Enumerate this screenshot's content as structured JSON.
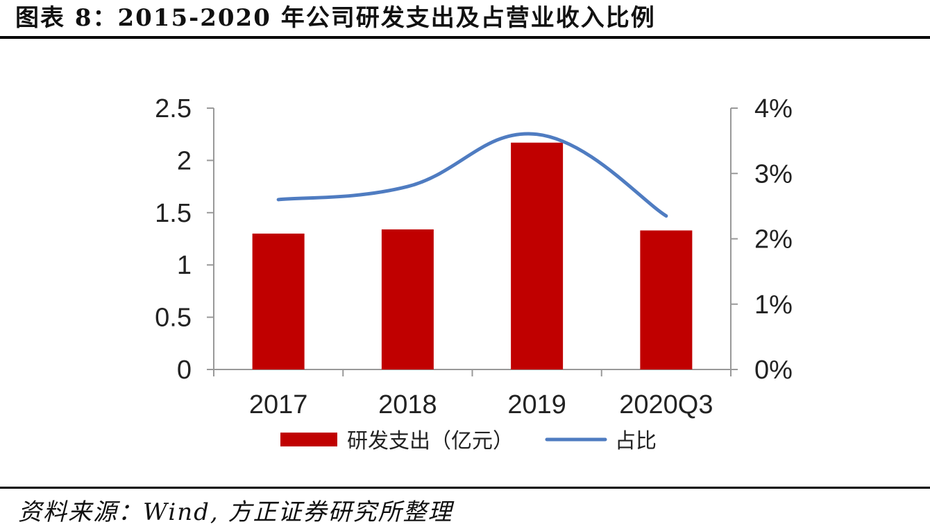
{
  "header": {
    "title": "图表 8：2015-2020 年公司研发支出及占营业收入比例"
  },
  "footer": {
    "source": "资料来源：Wind, 方正证券研究所整理"
  },
  "chart_data": {
    "type": "bar",
    "categories": [
      "2017",
      "2018",
      "2019",
      "2020Q3"
    ],
    "series": [
      {
        "name": "研发支出（亿元）",
        "type": "bar",
        "axis": "left",
        "color": "#c00000",
        "values": [
          1.3,
          1.34,
          2.17,
          1.33
        ]
      },
      {
        "name": "占比",
        "type": "line",
        "axis": "right",
        "color": "#4f7cc1",
        "values": [
          2.6,
          2.8,
          3.6,
          2.35
        ]
      }
    ],
    "y_left": {
      "min": 0,
      "max": 2.5,
      "ticks": [
        0,
        0.5,
        1,
        1.5,
        2,
        2.5
      ],
      "tick_labels": [
        "0",
        "0.5",
        "1",
        "1.5",
        "2",
        "2.5"
      ]
    },
    "y_right": {
      "min": 0,
      "max": 4,
      "ticks": [
        0,
        1,
        2,
        3,
        4
      ],
      "tick_labels": [
        "0%",
        "1%",
        "2%",
        "3%",
        "4%"
      ]
    },
    "legend": {
      "position": "bottom",
      "labels": [
        "研发支出（亿元）",
        "占比"
      ]
    },
    "grid": false
  }
}
